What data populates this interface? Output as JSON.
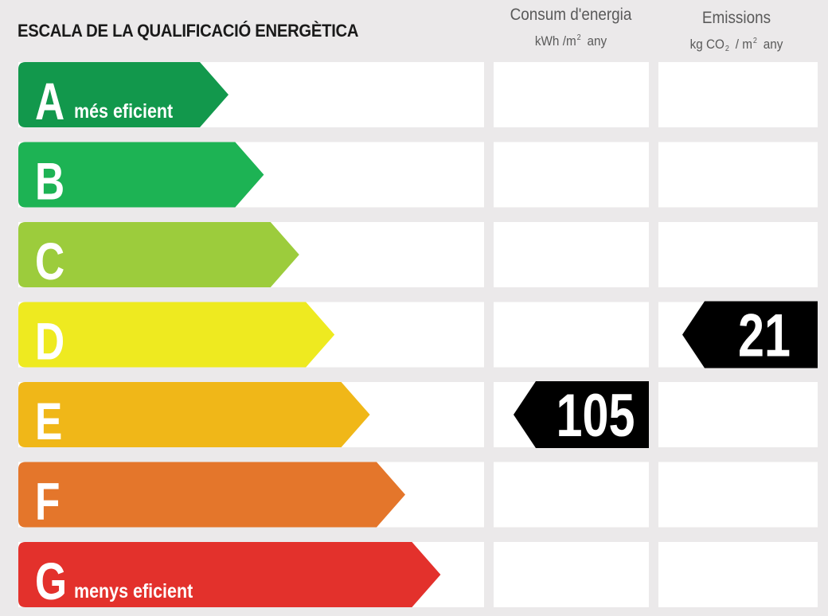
{
  "title": "ESCALA DE LA QUALIFICACIÓ ENERGÈTICA",
  "columns": {
    "consum": {
      "title": "Consum d'energia",
      "unit_pre": "kWh /m",
      "unit_sup": "2",
      "unit_post": "any"
    },
    "emissions": {
      "title": "Emissions",
      "unit_pre": "kg CO",
      "unit_sub": "2",
      "unit_mid": "/ m",
      "unit_sup": "2",
      "unit_post": "any"
    }
  },
  "chart_data": {
    "type": "bar",
    "title": "ESCALA DE LA QUALIFICACIÓ ENERGÈTICA",
    "categories": [
      "A",
      "B",
      "C",
      "D",
      "E",
      "F",
      "G"
    ],
    "sublabels": [
      "més eficient",
      "",
      "",
      "",
      "",
      "",
      "menys eficient"
    ],
    "colors": [
      "#12984c",
      "#1db354",
      "#9ccc3c",
      "#eeea20",
      "#f0b718",
      "#e4762b",
      "#e3312c"
    ],
    "consum_value": 105,
    "consum_class": "E",
    "emissions_value": 21,
    "emissions_class": "D"
  }
}
